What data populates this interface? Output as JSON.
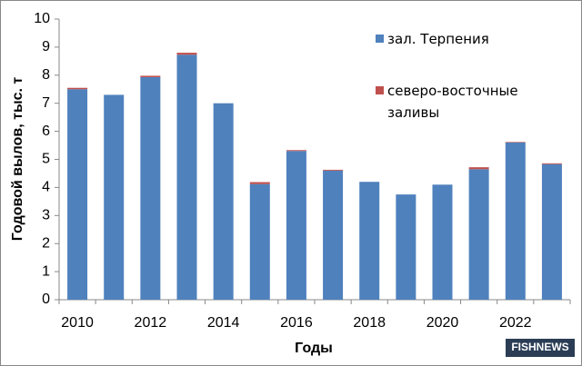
{
  "chart_data": {
    "type": "stacked_bar",
    "y_label": "Годовой вылов, тыс. т",
    "x_label": "Годы",
    "categories": [
      "2010",
      null,
      "2012",
      null,
      "2014",
      null,
      "2016",
      null,
      "2018",
      null,
      "2020",
      null,
      "2022",
      null
    ],
    "series": [
      {
        "name": "зал. Терпения",
        "color": "#4f81bd",
        "values": [
          7.5,
          7.3,
          7.93,
          8.73,
          7.0,
          4.12,
          5.3,
          4.6,
          4.2,
          3.75,
          4.1,
          4.65,
          5.6,
          4.83
        ]
      },
      {
        "name": "северо-восточные заливы",
        "color": "#c0504d",
        "values": [
          0.05,
          0,
          0.05,
          0.07,
          0,
          0.07,
          0.03,
          0.03,
          0,
          0,
          0,
          0.07,
          0.02,
          0.03
        ]
      }
    ],
    "ylim": [
      0,
      10
    ],
    "yticks": [
      0,
      1,
      2,
      3,
      4,
      5,
      6,
      7,
      8,
      9,
      10
    ],
    "watermark": "FISHNEWS"
  }
}
